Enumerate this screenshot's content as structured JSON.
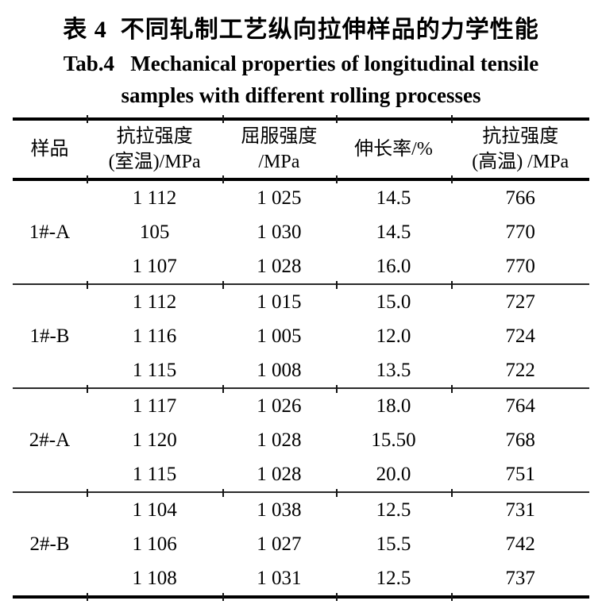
{
  "titles": {
    "zh": "表 4  不同轧制工艺纵向拉伸样品的力学性能",
    "en_line1": "Tab.4   Mechanical properties of longitudinal tensile",
    "en_line2": "samples with different rolling processes"
  },
  "table": {
    "headers": [
      {
        "line1": "样品",
        "line2": ""
      },
      {
        "line1": "抗拉强度",
        "line2": "(室温)/MPa"
      },
      {
        "line1": "屈服强度",
        "line2": "/MPa"
      },
      {
        "line1": "伸长率/%",
        "line2": ""
      },
      {
        "line1": "抗拉强度",
        "line2": "(高温) /MPa"
      }
    ],
    "groups": [
      {
        "sample": "1#-A",
        "rows": [
          [
            "1 112",
            "1 025",
            "14.5",
            "766"
          ],
          [
            "105",
            "1 030",
            "14.5",
            "770"
          ],
          [
            "1 107",
            "1 028",
            "16.0",
            "770"
          ]
        ]
      },
      {
        "sample": "1#-B",
        "rows": [
          [
            "1 112",
            "1 015",
            "15.0",
            "727"
          ],
          [
            "1 116",
            "1 005",
            "12.0",
            "724"
          ],
          [
            "1 115",
            "1 008",
            "13.5",
            "722"
          ]
        ]
      },
      {
        "sample": "2#-A",
        "rows": [
          [
            "1 117",
            "1 026",
            "18.0",
            "764"
          ],
          [
            "1 120",
            "1 028",
            "15.50",
            "768"
          ],
          [
            "1 115",
            "1 028",
            "20.0",
            "751"
          ]
        ]
      },
      {
        "sample": "2#-B",
        "rows": [
          [
            "1 104",
            "1 038",
            "12.5",
            "731"
          ],
          [
            "1 106",
            "1 027",
            "15.5",
            "742"
          ],
          [
            "1 108",
            "1 031",
            "12.5",
            "737"
          ]
        ]
      }
    ]
  },
  "colors": {
    "text": "#000000",
    "rule": "#000000",
    "background": "#ffffff"
  }
}
